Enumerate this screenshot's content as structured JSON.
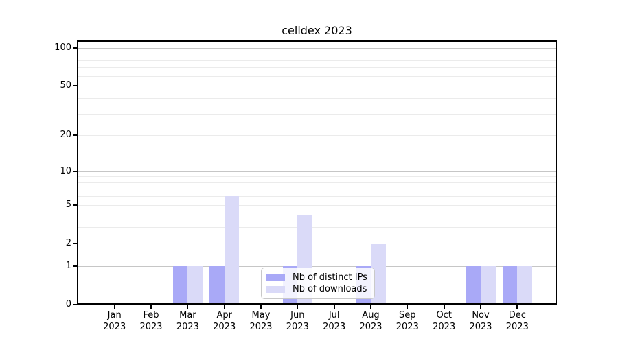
{
  "chart_data": {
    "type": "bar",
    "title": "celldex 2023",
    "categories": [
      "Jan",
      "Feb",
      "Mar",
      "Apr",
      "May",
      "Jun",
      "Jul",
      "Aug",
      "Sep",
      "Oct",
      "Nov",
      "Dec"
    ],
    "category_year": "2023",
    "series": [
      {
        "name": "Nb of distinct IPs",
        "color": "#a9a9f7",
        "values": [
          0,
          0,
          1,
          1,
          0,
          1,
          0,
          1,
          0,
          0,
          1,
          1
        ]
      },
      {
        "name": "Nb of downloads",
        "color": "#dadaf8",
        "values": [
          0,
          0,
          1,
          6,
          0,
          4,
          0,
          2,
          0,
          0,
          1,
          1
        ]
      }
    ],
    "yaxis": {
      "scale": "log10(value+1)",
      "tick_values": [
        0,
        1,
        2,
        5,
        10,
        20,
        50,
        100
      ],
      "major_gridlines": [
        1,
        10,
        100
      ],
      "minor_gridlines": [
        2,
        3,
        4,
        5,
        6,
        7,
        8,
        9,
        20,
        30,
        40,
        50,
        60,
        70,
        80,
        90
      ],
      "range": [
        0,
        110
      ]
    },
    "xlabel": "",
    "ylabel": "",
    "grid": true,
    "legend_position": "lower center",
    "colors": {
      "axis": "#000000",
      "text": "#000000",
      "major_gridline": "#c6c6c6",
      "minor_gridline": "#ebebeb",
      "legend_border": "#c9c9c9"
    }
  }
}
